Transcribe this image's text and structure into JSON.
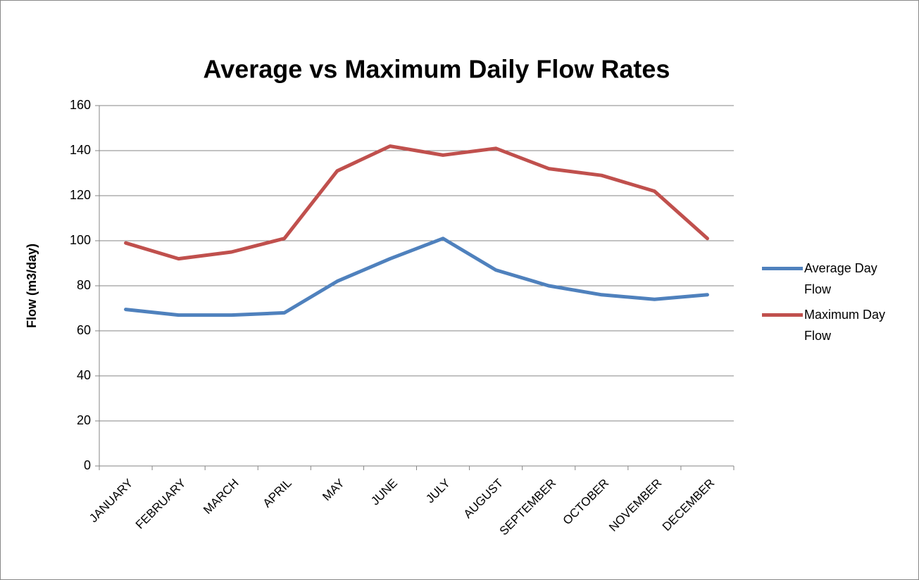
{
  "chart_data": {
    "type": "line",
    "title": "Average vs Maximum Daily Flow Rates",
    "y_label": "Flow (m3/day)",
    "categories": [
      "JANUARY",
      "FEBRUARY",
      "MARCH",
      "APRIL",
      "MAY",
      "JUNE",
      "JULY",
      "AUGUST",
      "SEPTEMBER",
      "OCTOBER",
      "NOVEMBER",
      "DECEMBER"
    ],
    "series": [
      {
        "name": "Average Day Flow",
        "color": "#4f81bd",
        "values": [
          69.5,
          67,
          67,
          68,
          82,
          92,
          101,
          87,
          80,
          76,
          74,
          76
        ]
      },
      {
        "name": "Maximum Day Flow",
        "color": "#c0504d",
        "values": [
          99,
          92,
          95,
          101,
          131,
          142,
          138,
          141,
          132,
          129,
          122,
          101
        ]
      }
    ],
    "ylim": [
      0,
      160
    ],
    "yticks": [
      0,
      20,
      40,
      60,
      80,
      100,
      120,
      140,
      160
    ],
    "grid": true,
    "legend": "right"
  }
}
